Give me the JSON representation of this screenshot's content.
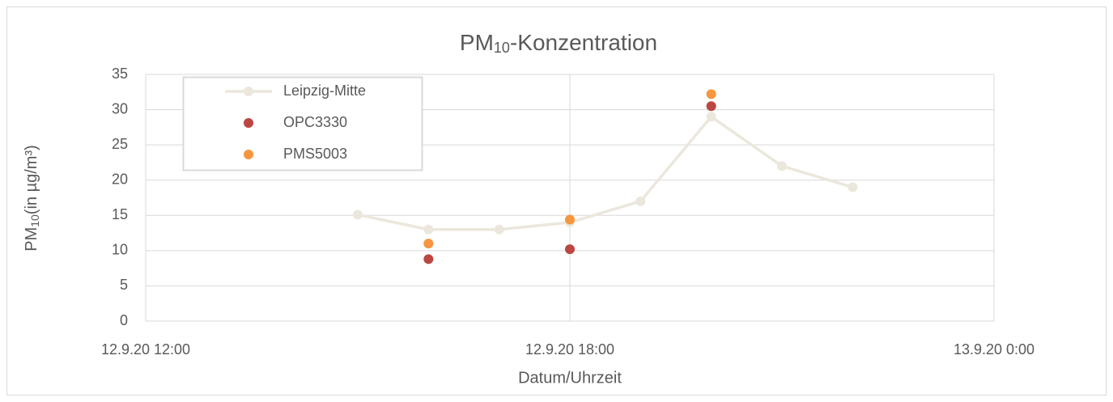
{
  "chart_data": {
    "type": "scatter",
    "title": [
      "PM",
      "10",
      "-Konzentration"
    ],
    "x_label": "Datum/Uhrzeit",
    "y_label": [
      "PM",
      "10",
      "(in µg/m³)"
    ],
    "xlim": [
      12,
      24
    ],
    "xticks": [
      {
        "value": 12,
        "label": "12.9.20 12:00"
      },
      {
        "value": 18,
        "label": "12.9.20 18:00"
      },
      {
        "value": 24,
        "label": "13.9.20 0:00"
      }
    ],
    "ylim": [
      0,
      35
    ],
    "yticks": [
      0,
      5,
      10,
      15,
      20,
      25,
      30,
      35
    ],
    "grid": true,
    "legend": "upper left",
    "series": [
      {
        "name": "Leipzig-Mitte",
        "color": "#ebe7dc",
        "line": true,
        "x": [
          15,
          16,
          17,
          18,
          19,
          20,
          21,
          22
        ],
        "values": [
          15.1,
          13,
          13,
          14,
          17,
          29,
          22,
          19
        ]
      },
      {
        "name": "OPC3330",
        "color": "#bc4641",
        "line": false,
        "x": [
          16,
          18,
          20
        ],
        "values": [
          8.8,
          10.2,
          30.5
        ]
      },
      {
        "name": "PMS5003",
        "color": "#f7963f",
        "line": false,
        "x": [
          16,
          18,
          20
        ],
        "values": [
          11,
          14.4,
          32.2
        ]
      }
    ]
  }
}
